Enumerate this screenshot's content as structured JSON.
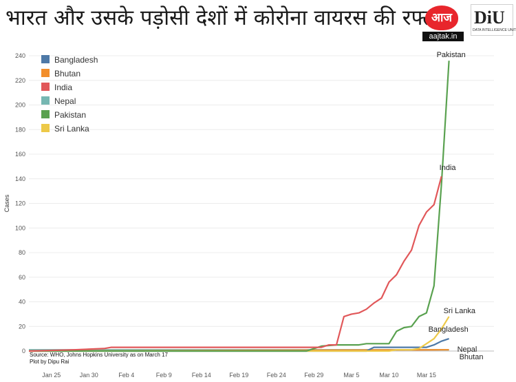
{
  "title": "भारत और उसके पड़ोसी देशों में कोरोना वायरस की रफ्तार",
  "logos": {
    "aajtak": {
      "text": "आज तक",
      "site": "aajtak.in",
      "color": "#e8262c"
    },
    "diu": {
      "text": "DiU",
      "subtext": "DATA INTELLIGENCE UNIT"
    }
  },
  "source": {
    "line1": "Source: WHO, Johns Hopkins University as on March 17",
    "line2": "Plot by Dipu Rai"
  },
  "chart_data": {
    "type": "line",
    "ylabel": "Cases",
    "ylim": [
      0,
      240
    ],
    "yticks": [
      0,
      20,
      40,
      60,
      80,
      100,
      120,
      140,
      160,
      180,
      200,
      220,
      240
    ],
    "xlim": [
      0,
      62
    ],
    "xticks": [
      {
        "label": "Jan 25",
        "x": 3
      },
      {
        "label": "Jan 30",
        "x": 8
      },
      {
        "label": "Feb 4",
        "x": 13
      },
      {
        "label": "Feb 9",
        "x": 18
      },
      {
        "label": "Feb 14",
        "x": 23
      },
      {
        "label": "Feb 19",
        "x": 28
      },
      {
        "label": "Feb 24",
        "x": 33
      },
      {
        "label": "Feb 29",
        "x": 38
      },
      {
        "label": "Mar 5",
        "x": 43
      },
      {
        "label": "Mar 10",
        "x": 48
      },
      {
        "label": "Mar 15",
        "x": 53
      }
    ],
    "grid": true,
    "legend_position": "top-left",
    "series": [
      {
        "name": "Bangladesh",
        "color": "#4e79a7",
        "end_label": "Bangladesh",
        "points": [
          [
            0,
            0
          ],
          [
            45,
            0
          ],
          [
            46,
            3
          ],
          [
            53,
            3
          ],
          [
            54,
            5
          ],
          [
            55,
            8
          ],
          [
            56,
            10
          ]
        ]
      },
      {
        "name": "Bhutan",
        "color": "#f28e2b",
        "end_label": "Bhutan",
        "points": [
          [
            0,
            0
          ],
          [
            55,
            1
          ],
          [
            56,
            1
          ]
        ]
      },
      {
        "name": "India",
        "color": "#e15759",
        "end_label": "India",
        "points": [
          [
            0,
            0
          ],
          [
            6,
            1
          ],
          [
            10,
            2
          ],
          [
            11,
            3
          ],
          [
            36,
            3
          ],
          [
            37,
            3
          ],
          [
            39,
            3
          ],
          [
            40,
            5
          ],
          [
            41,
            5
          ],
          [
            42,
            28
          ],
          [
            43,
            30
          ],
          [
            44,
            31
          ],
          [
            45,
            34
          ],
          [
            46,
            39
          ],
          [
            47,
            43
          ],
          [
            48,
            56
          ],
          [
            49,
            62
          ],
          [
            50,
            73
          ],
          [
            51,
            82
          ],
          [
            52,
            102
          ],
          [
            53,
            113
          ],
          [
            54,
            119
          ],
          [
            55,
            142
          ]
        ]
      },
      {
        "name": "Nepal",
        "color": "#76b7b2",
        "end_label": "Nepal",
        "points": [
          [
            0,
            1
          ],
          [
            56,
            1
          ]
        ]
      },
      {
        "name": "Pakistan",
        "color": "#59a14f",
        "end_label": "Pakistan",
        "points": [
          [
            0,
            0
          ],
          [
            37,
            0
          ],
          [
            38,
            2
          ],
          [
            39,
            4
          ],
          [
            41,
            5
          ],
          [
            44,
            5
          ],
          [
            45,
            6
          ],
          [
            48,
            6
          ],
          [
            49,
            16
          ],
          [
            50,
            19
          ],
          [
            51,
            20
          ],
          [
            52,
            28
          ],
          [
            53,
            31
          ],
          [
            54,
            53
          ],
          [
            55,
            136
          ],
          [
            56,
            236
          ]
        ]
      },
      {
        "name": "Sri Lanka",
        "color": "#edc948",
        "end_label": "Sri Lanka",
        "points": [
          [
            0,
            0
          ],
          [
            48,
            0
          ],
          [
            49,
            1
          ],
          [
            50,
            1
          ],
          [
            51,
            1
          ],
          [
            52,
            2
          ],
          [
            53,
            6
          ],
          [
            54,
            10
          ],
          [
            55,
            18
          ],
          [
            56,
            28
          ]
        ]
      }
    ]
  }
}
